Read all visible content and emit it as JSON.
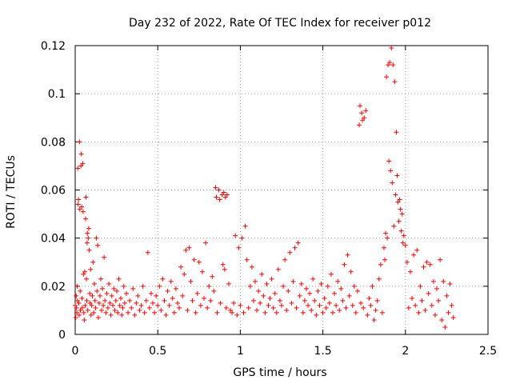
{
  "chart_data": {
    "type": "scatter",
    "title": "Day 232 of 2022, Rate Of TEC Index for receiver p012",
    "xlabel": "GPS time / hours",
    "ylabel": "ROTI / TECUs",
    "xlim": [
      0,
      2.5
    ],
    "ylim": [
      0,
      0.12
    ],
    "xticks": [
      0,
      0.5,
      1,
      1.5,
      2,
      2.5
    ],
    "xtick_labels": [
      "0",
      "0.5",
      "1",
      "1.5",
      "2",
      "2.5"
    ],
    "yticks": [
      0,
      0.02,
      0.04,
      0.06,
      0.08,
      0.1,
      0.12
    ],
    "ytick_labels": [
      "0",
      "0.02",
      "0.04",
      "0.06",
      "0.08",
      "0.1",
      "0.12"
    ],
    "grid": true,
    "marker": "plus",
    "color": "#ff0000",
    "series": [
      {
        "name": "ROTI",
        "points": [
          [
            0.0,
            0.012
          ],
          [
            0.003,
            0.007
          ],
          [
            0.006,
            0.016
          ],
          [
            0.008,
            0.011
          ],
          [
            0.01,
            0.009
          ],
          [
            0.012,
            0.02
          ],
          [
            0.014,
            0.014
          ],
          [
            0.016,
            0.069
          ],
          [
            0.018,
            0.054
          ],
          [
            0.02,
            0.056
          ],
          [
            0.022,
            0.013
          ],
          [
            0.024,
            0.008
          ],
          [
            0.026,
            0.08
          ],
          [
            0.028,
            0.052
          ],
          [
            0.03,
            0.018
          ],
          [
            0.032,
            0.01
          ],
          [
            0.035,
            0.07
          ],
          [
            0.037,
            0.075
          ],
          [
            0.039,
            0.053
          ],
          [
            0.041,
            0.015
          ],
          [
            0.043,
            0.011
          ],
          [
            0.046,
            0.071
          ],
          [
            0.048,
            0.051
          ],
          [
            0.05,
            0.025
          ],
          [
            0.052,
            0.009
          ],
          [
            0.055,
            0.006
          ],
          [
            0.058,
            0.026
          ],
          [
            0.06,
            0.012
          ],
          [
            0.063,
            0.048
          ],
          [
            0.065,
            0.057
          ],
          [
            0.068,
            0.023
          ],
          [
            0.07,
            0.014
          ],
          [
            0.072,
            0.038
          ],
          [
            0.074,
            0.042
          ],
          [
            0.076,
            0.01
          ],
          [
            0.079,
            0.04
          ],
          [
            0.082,
            0.044
          ],
          [
            0.085,
            0.035
          ],
          [
            0.088,
            0.017
          ],
          [
            0.09,
            0.013
          ],
          [
            0.093,
            0.027
          ],
          [
            0.096,
            0.008
          ],
          [
            0.1,
            0.012
          ],
          [
            0.104,
            0.016
          ],
          [
            0.108,
            0.03
          ],
          [
            0.112,
            0.009
          ],
          [
            0.116,
            0.021
          ],
          [
            0.12,
            0.014
          ],
          [
            0.124,
            0.011
          ],
          [
            0.128,
            0.04
          ],
          [
            0.132,
            0.018
          ],
          [
            0.136,
            0.037
          ],
          [
            0.14,
            0.007
          ],
          [
            0.145,
            0.013
          ],
          [
            0.15,
            0.016
          ],
          [
            0.155,
            0.023
          ],
          [
            0.16,
            0.01
          ],
          [
            0.165,
            0.019
          ],
          [
            0.17,
            0.012
          ],
          [
            0.175,
            0.032
          ],
          [
            0.18,
            0.014
          ],
          [
            0.186,
            0.009
          ],
          [
            0.192,
            0.017
          ],
          [
            0.198,
            0.011
          ],
          [
            0.204,
            0.021
          ],
          [
            0.21,
            0.013
          ],
          [
            0.216,
            0.008
          ],
          [
            0.222,
            0.016
          ],
          [
            0.228,
            0.012
          ],
          [
            0.234,
            0.019
          ],
          [
            0.24,
            0.01
          ],
          [
            0.246,
            0.014
          ],
          [
            0.252,
            0.018
          ],
          [
            0.258,
            0.009
          ],
          [
            0.264,
            0.023
          ],
          [
            0.27,
            0.012
          ],
          [
            0.276,
            0.015
          ],
          [
            0.282,
            0.008
          ],
          [
            0.288,
            0.011
          ],
          [
            0.294,
            0.02
          ],
          [
            0.3,
            0.013
          ],
          [
            0.31,
            0.017
          ],
          [
            0.32,
            0.009
          ],
          [
            0.33,
            0.014
          ],
          [
            0.34,
            0.011
          ],
          [
            0.35,
            0.019
          ],
          [
            0.36,
            0.008
          ],
          [
            0.37,
            0.013
          ],
          [
            0.38,
            0.016
          ],
          [
            0.39,
            0.01
          ],
          [
            0.4,
            0.012
          ],
          [
            0.41,
            0.02
          ],
          [
            0.42,
            0.009
          ],
          [
            0.43,
            0.014
          ],
          [
            0.44,
            0.034
          ],
          [
            0.45,
            0.011
          ],
          [
            0.46,
            0.017
          ],
          [
            0.47,
            0.013
          ],
          [
            0.48,
            0.009
          ],
          [
            0.49,
            0.016
          ],
          [
            0.5,
            0.012
          ],
          [
            0.51,
            0.02
          ],
          [
            0.52,
            0.01
          ],
          [
            0.53,
            0.023
          ],
          [
            0.54,
            0.014
          ],
          [
            0.55,
            0.008
          ],
          [
            0.56,
            0.018
          ],
          [
            0.57,
            0.012
          ],
          [
            0.58,
            0.022
          ],
          [
            0.59,
            0.015
          ],
          [
            0.6,
            0.009
          ],
          [
            0.61,
            0.019
          ],
          [
            0.62,
            0.013
          ],
          [
            0.63,
            0.011
          ],
          [
            0.64,
            0.028
          ],
          [
            0.65,
            0.016
          ],
          [
            0.66,
            0.025
          ],
          [
            0.67,
            0.035
          ],
          [
            0.68,
            0.01
          ],
          [
            0.69,
            0.036
          ],
          [
            0.7,
            0.022
          ],
          [
            0.71,
            0.014
          ],
          [
            0.72,
            0.031
          ],
          [
            0.73,
            0.009
          ],
          [
            0.74,
            0.017
          ],
          [
            0.75,
            0.03
          ],
          [
            0.76,
            0.012
          ],
          [
            0.77,
            0.026
          ],
          [
            0.78,
            0.015
          ],
          [
            0.79,
            0.038
          ],
          [
            0.8,
            0.011
          ],
          [
            0.81,
            0.02
          ],
          [
            0.82,
            0.014
          ],
          [
            0.83,
            0.024
          ],
          [
            0.84,
            0.018
          ],
          [
            0.85,
            0.061
          ],
          [
            0.855,
            0.057
          ],
          [
            0.86,
            0.009
          ],
          [
            0.87,
            0.06
          ],
          [
            0.875,
            0.056
          ],
          [
            0.88,
            0.013
          ],
          [
            0.89,
            0.058
          ],
          [
            0.895,
            0.029
          ],
          [
            0.9,
            0.059
          ],
          [
            0.905,
            0.027
          ],
          [
            0.91,
            0.057
          ],
          [
            0.915,
            0.011
          ],
          [
            0.92,
            0.058
          ],
          [
            0.93,
            0.021
          ],
          [
            0.94,
            0.01
          ],
          [
            0.95,
            0.009
          ],
          [
            0.96,
            0.013
          ],
          [
            0.97,
            0.041
          ],
          [
            0.98,
            0.008
          ],
          [
            0.99,
            0.036
          ],
          [
            1.0,
            0.012
          ],
          [
            1.01,
            0.04
          ],
          [
            1.02,
            0.009
          ],
          [
            1.03,
            0.045
          ],
          [
            1.04,
            0.031
          ],
          [
            1.05,
            0.011
          ],
          [
            1.06,
            0.02
          ],
          [
            1.07,
            0.028
          ],
          [
            1.08,
            0.014
          ],
          [
            1.09,
            0.022
          ],
          [
            1.1,
            0.01
          ],
          [
            1.11,
            0.018
          ],
          [
            1.12,
            0.013
          ],
          [
            1.13,
            0.025
          ],
          [
            1.14,
            0.016
          ],
          [
            1.15,
            0.009
          ],
          [
            1.16,
            0.021
          ],
          [
            1.17,
            0.012
          ],
          [
            1.18,
            0.015
          ],
          [
            1.19,
            0.023
          ],
          [
            1.2,
            0.011
          ],
          [
            1.21,
            0.017
          ],
          [
            1.22,
            0.009
          ],
          [
            1.23,
            0.027
          ],
          [
            1.24,
            0.014
          ],
          [
            1.25,
            0.012
          ],
          [
            1.26,
            0.02
          ],
          [
            1.27,
            0.031
          ],
          [
            1.28,
            0.01
          ],
          [
            1.29,
            0.018
          ],
          [
            1.3,
            0.034
          ],
          [
            1.31,
            0.013
          ],
          [
            1.32,
            0.022
          ],
          [
            1.33,
            0.036
          ],
          [
            1.34,
            0.011
          ],
          [
            1.35,
            0.038
          ],
          [
            1.36,
            0.016
          ],
          [
            1.37,
            0.021
          ],
          [
            1.38,
            0.009
          ],
          [
            1.39,
            0.014
          ],
          [
            1.4,
            0.019
          ],
          [
            1.41,
            0.012
          ],
          [
            1.42,
            0.017
          ],
          [
            1.43,
            0.01
          ],
          [
            1.44,
            0.023
          ],
          [
            1.45,
            0.014
          ],
          [
            1.46,
            0.008
          ],
          [
            1.47,
            0.018
          ],
          [
            1.48,
            0.012
          ],
          [
            1.49,
            0.021
          ],
          [
            1.5,
            0.009
          ],
          [
            1.51,
            0.015
          ],
          [
            1.52,
            0.011
          ],
          [
            1.53,
            0.02
          ],
          [
            1.54,
            0.013
          ],
          [
            1.55,
            0.025
          ],
          [
            1.56,
            0.009
          ],
          [
            1.57,
            0.017
          ],
          [
            1.58,
            0.012
          ],
          [
            1.59,
            0.022
          ],
          [
            1.6,
            0.01
          ],
          [
            1.61,
            0.019
          ],
          [
            1.62,
            0.014
          ],
          [
            1.63,
            0.029
          ],
          [
            1.64,
            0.011
          ],
          [
            1.65,
            0.033
          ],
          [
            1.66,
            0.016
          ],
          [
            1.67,
            0.026
          ],
          [
            1.68,
            0.012
          ],
          [
            1.69,
            0.02
          ],
          [
            1.7,
            0.009
          ],
          [
            1.71,
            0.018
          ],
          [
            1.72,
            0.087
          ],
          [
            1.725,
            0.095
          ],
          [
            1.73,
            0.013
          ],
          [
            1.735,
            0.092
          ],
          [
            1.74,
            0.089
          ],
          [
            1.745,
            0.011
          ],
          [
            1.75,
            0.09
          ],
          [
            1.76,
            0.093
          ],
          [
            1.77,
            0.008
          ],
          [
            1.78,
            0.015
          ],
          [
            1.79,
            0.012
          ],
          [
            1.8,
            0.02
          ],
          [
            1.81,
            0.006
          ],
          [
            1.82,
            0.01
          ],
          [
            1.83,
            0.014
          ],
          [
            1.84,
            0.023
          ],
          [
            1.85,
            0.029
          ],
          [
            1.86,
            0.009
          ],
          [
            1.87,
            0.036
          ],
          [
            1.875,
            0.031
          ],
          [
            1.88,
            0.042
          ],
          [
            1.885,
            0.107
          ],
          [
            1.89,
            0.04
          ],
          [
            1.895,
            0.112
          ],
          [
            1.9,
            0.072
          ],
          [
            1.905,
            0.113
          ],
          [
            1.91,
            0.068
          ],
          [
            1.915,
            0.119
          ],
          [
            1.92,
            0.063
          ],
          [
            1.925,
            0.112
          ],
          [
            1.93,
            0.045
          ],
          [
            1.935,
            0.105
          ],
          [
            1.94,
            0.058
          ],
          [
            1.945,
            0.084
          ],
          [
            1.95,
            0.066
          ],
          [
            1.955,
            0.055
          ],
          [
            1.96,
            0.047
          ],
          [
            1.965,
            0.056
          ],
          [
            1.97,
            0.052
          ],
          [
            1.975,
            0.043
          ],
          [
            1.98,
            0.05
          ],
          [
            1.985,
            0.038
          ],
          [
            1.99,
            0.041
          ],
          [
            2.0,
            0.037
          ],
          [
            2.01,
            0.03
          ],
          [
            2.02,
            0.011
          ],
          [
            2.03,
            0.026
          ],
          [
            2.04,
            0.015
          ],
          [
            2.05,
            0.033
          ],
          [
            2.06,
            0.012
          ],
          [
            2.07,
            0.035
          ],
          [
            2.08,
            0.009
          ],
          [
            2.09,
            0.02
          ],
          [
            2.1,
            0.014
          ],
          [
            2.11,
            0.028
          ],
          [
            2.12,
            0.01
          ],
          [
            2.13,
            0.03
          ],
          [
            2.14,
            0.017
          ],
          [
            2.15,
            0.029
          ],
          [
            2.16,
            0.012
          ],
          [
            2.17,
            0.022
          ],
          [
            2.18,
            0.008
          ],
          [
            2.19,
            0.019
          ],
          [
            2.2,
            0.014
          ],
          [
            2.21,
            0.031
          ],
          [
            2.22,
            0.006
          ],
          [
            2.23,
            0.022
          ],
          [
            2.24,
            0.003
          ],
          [
            2.25,
            0.016
          ],
          [
            2.26,
            0.009
          ],
          [
            2.27,
            0.021
          ],
          [
            2.28,
            0.012
          ],
          [
            2.29,
            0.007
          ]
        ]
      }
    ]
  }
}
